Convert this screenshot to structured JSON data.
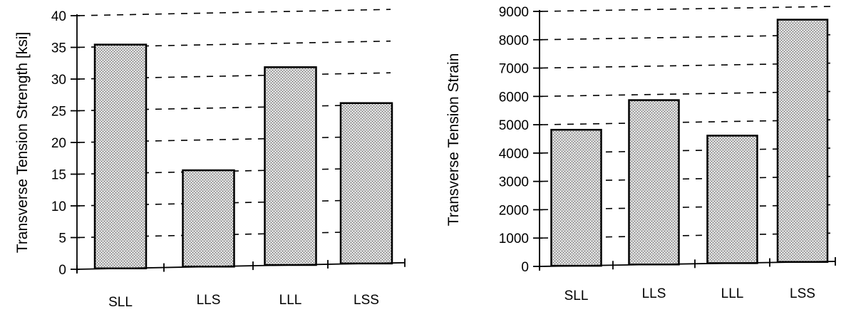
{
  "chart_data": [
    {
      "type": "bar",
      "title": "",
      "xlabel": "",
      "ylabel": "Transverse Tension Strength [ksi]",
      "categories": [
        "SLL",
        "LLS",
        "LLL",
        "LSS"
      ],
      "values": [
        35.3,
        15.2,
        31.2,
        25.3
      ],
      "ylim": [
        0,
        40
      ],
      "yticks": [
        0,
        5,
        10,
        15,
        20,
        25,
        30,
        35,
        40
      ],
      "grid": true,
      "legend": "none"
    },
    {
      "type": "bar",
      "title": "",
      "xlabel": "",
      "ylabel": "Transverse Tension Strain",
      "categories": [
        "SLL",
        "LLS",
        "LLL",
        "LSS"
      ],
      "values": [
        4800,
        5800,
        4500,
        8550
      ],
      "ylim": [
        0,
        9000
      ],
      "yticks": [
        0,
        1000,
        2000,
        3000,
        4000,
        5000,
        6000,
        7000,
        8000,
        9000
      ],
      "grid": true,
      "legend": "none"
    }
  ],
  "style": {
    "bar_fill": "#c4c4c4",
    "ink": "#000000"
  }
}
